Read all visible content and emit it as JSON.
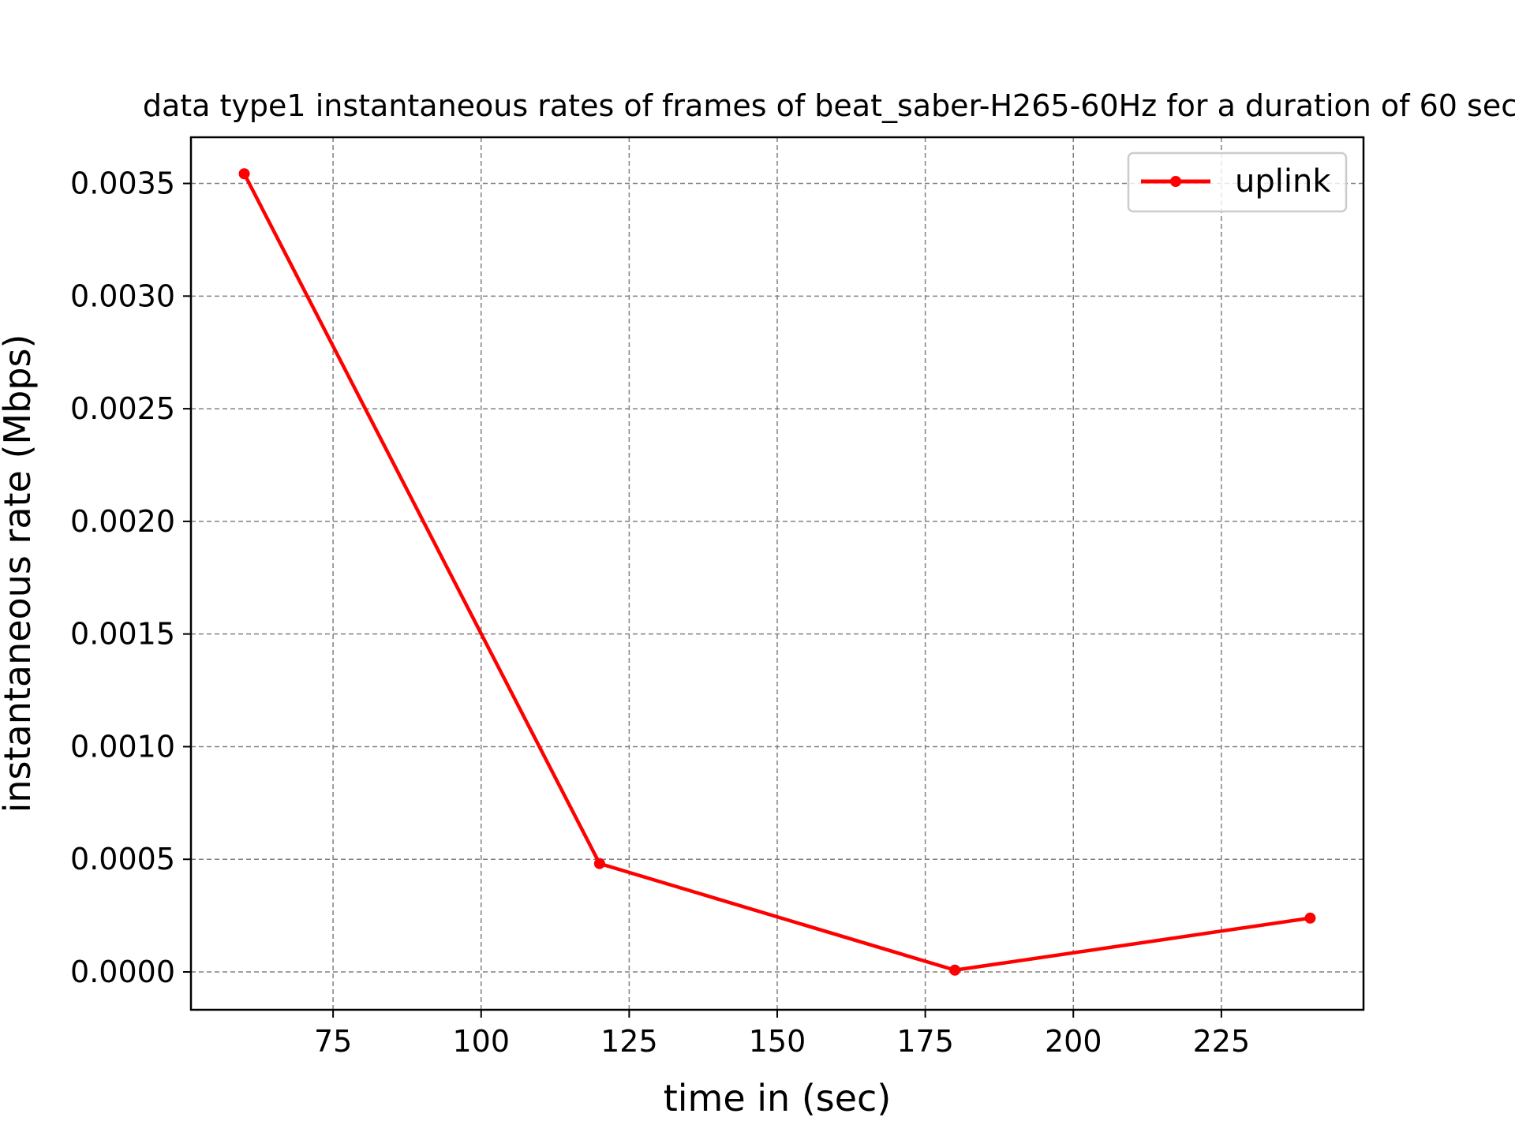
{
  "chart_data": {
    "type": "line",
    "title": "data type1 instantaneous rates of frames of beat_saber-H265-60Hz for a duration of 60 sec",
    "xlabel": "time in (sec)",
    "ylabel": "instantaneous rate (Mbps)",
    "xlim": [
      51,
      249
    ],
    "ylim": [
      -0.000168,
      0.003705
    ],
    "x_ticks": [
      75,
      100,
      125,
      150,
      175,
      200,
      225
    ],
    "y_ticks": [
      0.0,
      0.0005,
      0.001,
      0.0015,
      0.002,
      0.0025,
      0.003,
      0.0035
    ],
    "x_tick_labels": [
      "75",
      "100",
      "125",
      "150",
      "175",
      "200",
      "225"
    ],
    "y_tick_labels": [
      "0.0000",
      "0.0005",
      "0.0010",
      "0.0015",
      "0.0020",
      "0.0025",
      "0.0030",
      "0.0035"
    ],
    "grid": true,
    "legend_position": "top-right",
    "series": [
      {
        "name": "uplink",
        "color": "#ff0000",
        "marker": "circle",
        "x": [
          60,
          120,
          180,
          240
        ],
        "y": [
          0.003543,
          0.000481,
          8e-06,
          0.000239
        ]
      }
    ]
  }
}
